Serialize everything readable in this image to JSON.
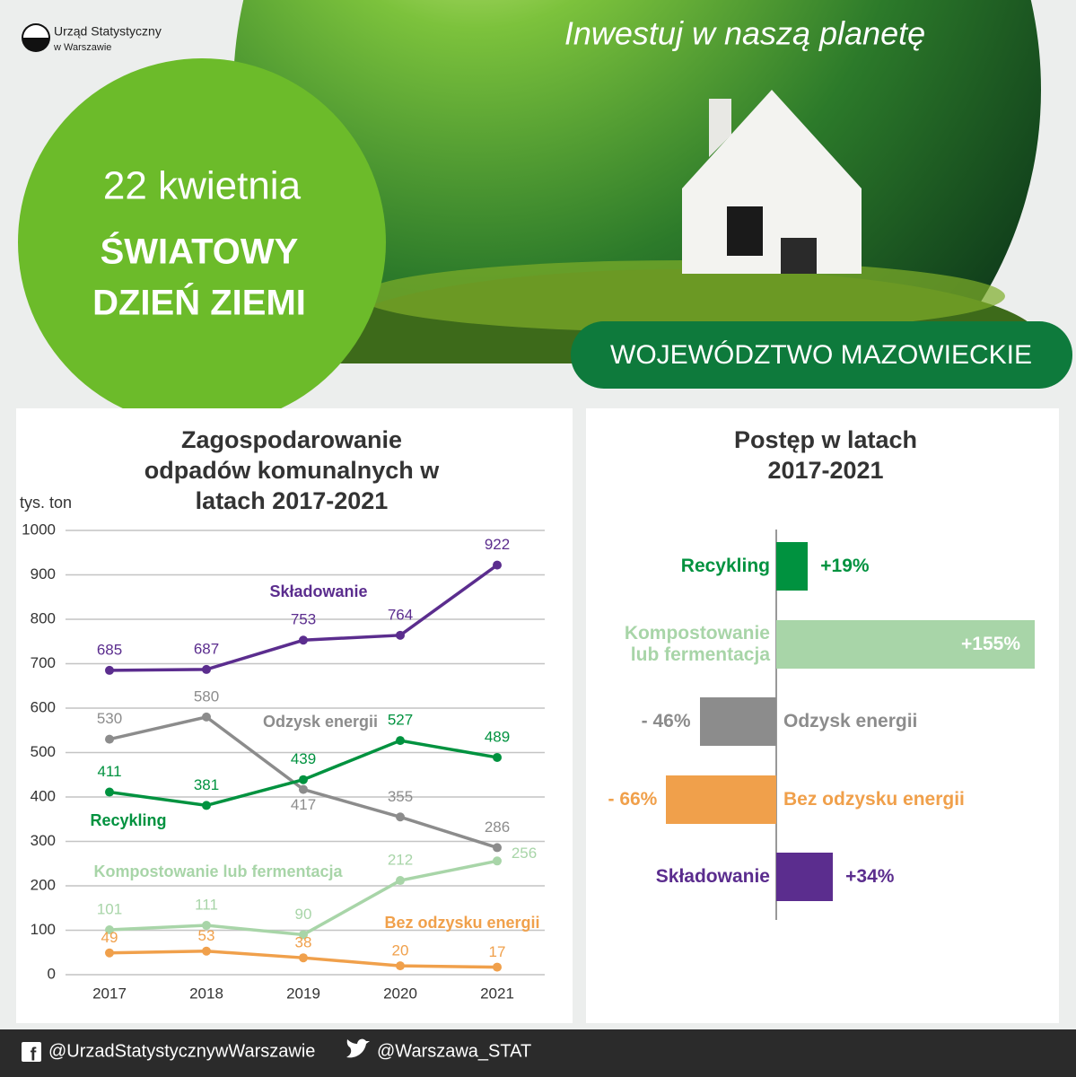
{
  "header": {
    "logo_line1": "Urząd Statystyczny",
    "logo_line2": "w Warszawie",
    "slogan": "Inwestuj w naszą planetę",
    "date": "22 kwietnia",
    "event_line1": "ŚWIATOWY",
    "event_line2": "DZIEŃ ZIEMI",
    "region": "WOJEWÓDZTWO MAZOWIECKIE"
  },
  "chart_data": [
    {
      "type": "line",
      "title": "Zagospodarowanie odpadów komunalnych w latach 2017-2021",
      "y_label": "tys. ton",
      "categories": [
        "2017",
        "2018",
        "2019",
        "2020",
        "2021"
      ],
      "ylim": [
        0,
        1000
      ],
      "yticks": [
        0,
        100,
        200,
        300,
        400,
        500,
        600,
        700,
        800,
        900,
        1000
      ],
      "grid": true,
      "series": [
        {
          "name": "Składowanie",
          "color": "#5b2d8e",
          "values": [
            685,
            687,
            753,
            764,
            922
          ]
        },
        {
          "name": "Odzysk energii",
          "color": "#8c8c8c",
          "values": [
            530,
            580,
            417,
            355,
            286
          ]
        },
        {
          "name": "Recykling",
          "color": "#00923f",
          "values": [
            411,
            381,
            439,
            527,
            489
          ]
        },
        {
          "name": "Kompostowanie lub fermentacja",
          "color": "#a8d5a8",
          "values": [
            101,
            111,
            90,
            212,
            256
          ]
        },
        {
          "name": "Bez odzysku energii",
          "color": "#f0a04b",
          "values": [
            49,
            53,
            38,
            20,
            17
          ]
        }
      ]
    },
    {
      "type": "bar",
      "orientation": "horizontal",
      "title": "Postęp w latach 2017-2021",
      "categories": [
        "Recykling",
        "Kompostowanie lub fermentacja",
        "Odzysk energii",
        "Bez odzysku energii",
        "Składowanie"
      ],
      "values": [
        19,
        155,
        -46,
        -66,
        34
      ],
      "value_labels": [
        "+19%",
        "+155%",
        "- 46%",
        "- 66%",
        "+34%"
      ],
      "colors": [
        "#00923f",
        "#a8d5a8",
        "#8c8c8c",
        "#f0a04b",
        "#5b2d8e"
      ]
    }
  ],
  "footer": {
    "facebook": "@UrzadStatystycznywWarszawie",
    "twitter": "@Warszawa_STAT"
  }
}
